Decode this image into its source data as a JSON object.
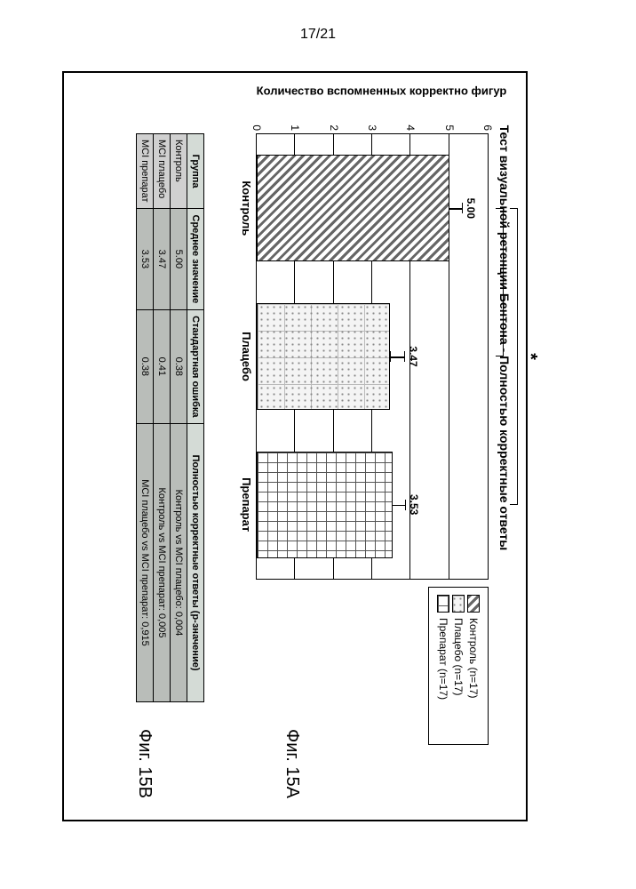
{
  "page_number": "17/21",
  "figure": {
    "chart_title": "Тест визуальной ретенции Бентона - Полностью корректные ответы",
    "y_label": "Количество вспомненных корректно фигур",
    "y": {
      "min": 0,
      "max": 6,
      "step": 1
    },
    "groups": [
      {
        "name": "Контроль",
        "value": 5.0,
        "value_label": "5.00",
        "se": 0.38
      },
      {
        "name": "Плацебо",
        "value": 3.47,
        "value_label": "3.47",
        "se": 0.41
      },
      {
        "name": "Препарат",
        "value": 3.53,
        "value_label": "3.53",
        "se": 0.38
      }
    ],
    "legend": [
      {
        "label": "Контроль (n=17)",
        "pattern": "A"
      },
      {
        "label": "Плацебо (n=17)",
        "pattern": "B"
      },
      {
        "label": "Препарат (n=17)",
        "pattern": "C"
      }
    ],
    "significance": [
      {
        "from": 0,
        "to": 1,
        "mark": "*"
      },
      {
        "from": 0,
        "to": 2,
        "mark": "*"
      }
    ],
    "panelA_label": "Фиг. 15A",
    "panelB_label": "Фиг. 15B",
    "pattern_colors": {
      "A_fg": "#666666",
      "A_bg": "#ffffff",
      "B_fg": "#888888",
      "B_bg": "#f4f4f4",
      "C_fg": "#555555",
      "C_bg": "#ffffff"
    }
  },
  "table": {
    "headers": [
      "Группа",
      "Среднее значение",
      "Стандартная ошибка",
      "Полностью корректные ответы (p-значение)"
    ],
    "rows": [
      {
        "group": "Контроль",
        "mean": "5.00",
        "se": "0.38",
        "p": "Контроль vs MCI плацебо: 0,004"
      },
      {
        "group": "MCI плацебо",
        "mean": "3.47",
        "se": "0.41",
        "p": "Контроль vs MCI препарат: 0,005"
      },
      {
        "group": "MCI препарат",
        "mean": "3.53",
        "se": "0.38",
        "p": "MCI плацебо vs MCI препарат: 0,915"
      }
    ]
  }
}
